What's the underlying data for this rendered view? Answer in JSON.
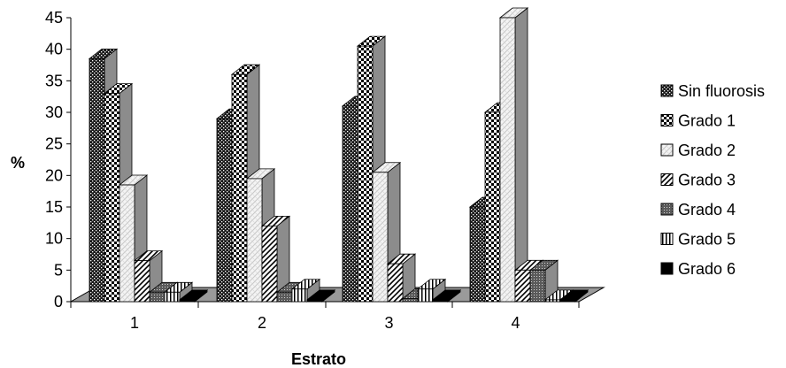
{
  "chart_data": {
    "type": "bar",
    "categories": [
      "1",
      "2",
      "3",
      "4"
    ],
    "xlabel": "Estrato",
    "ylabel": "%",
    "ylim": [
      0,
      45
    ],
    "yticks": [
      "0",
      "5",
      "10",
      "15",
      "20",
      "25",
      "30",
      "35",
      "40",
      "45"
    ],
    "grid": false,
    "legend_position": "right",
    "series": [
      {
        "name": "Sin fluorosis",
        "values": [
          38.5,
          29,
          31,
          15
        ],
        "pattern": "dark-dots"
      },
      {
        "name": "Grado 1",
        "values": [
          33,
          36,
          40.5,
          30
        ],
        "pattern": "checker"
      },
      {
        "name": "Grado 2",
        "values": [
          18.5,
          19.5,
          20.5,
          45
        ],
        "pattern": "light-diag"
      },
      {
        "name": "Grado 3",
        "values": [
          6.5,
          12,
          6,
          5
        ],
        "pattern": "diag"
      },
      {
        "name": "Grado 4",
        "values": [
          1.5,
          1.5,
          0.5,
          5
        ],
        "pattern": "grid"
      },
      {
        "name": "Grado 5",
        "values": [
          1.5,
          2,
          2,
          0.3
        ],
        "pattern": "vlines"
      },
      {
        "name": "Grado 6",
        "values": [
          0.3,
          0.3,
          0.3,
          0.3
        ],
        "pattern": "solid"
      }
    ],
    "colors": {
      "axis": "#000000",
      "floor": "#9a9a9a",
      "side_shade": "#8c8c8c"
    }
  }
}
